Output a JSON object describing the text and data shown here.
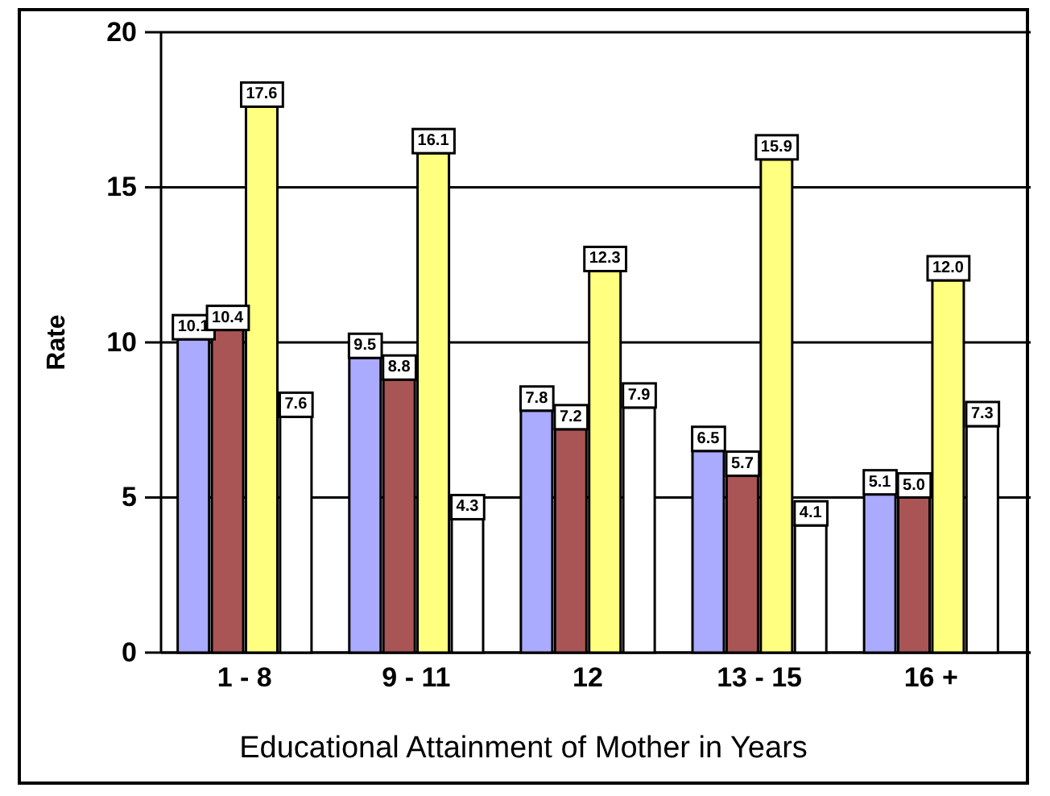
{
  "chart_data": {
    "type": "bar",
    "xlabel": "Educational Attainment of Mother in Years",
    "ylabel": "Rate",
    "categories": [
      "1 - 8",
      "9 - 11",
      "12",
      "13 - 15",
      "16 +"
    ],
    "series": [
      {
        "color": "#aaaaff",
        "values": [
          10.1,
          9.5,
          7.8,
          6.5,
          5.1
        ],
        "value_labels": [
          "10.1",
          "9.5",
          "7.8",
          "6.5",
          "5.1"
        ]
      },
      {
        "color": "#aa5555",
        "values": [
          10.4,
          8.8,
          7.2,
          5.7,
          5.0
        ],
        "value_labels": [
          "10.4",
          "8.8",
          "7.2",
          "5.7",
          "5.0"
        ]
      },
      {
        "color": "#ffff80",
        "values": [
          17.6,
          16.1,
          12.3,
          15.9,
          12.0
        ],
        "value_labels": [
          "17.6",
          "16.1",
          "12.3",
          "15.9",
          "12.0"
        ]
      },
      {
        "color": "#ffffff",
        "values": [
          7.6,
          4.3,
          7.9,
          4.1,
          7.3
        ],
        "value_labels": [
          "7.6",
          "4.3",
          "7.9",
          "4.1",
          "7.3"
        ]
      }
    ],
    "ylim": [
      0,
      20
    ],
    "yticks": [
      0,
      5,
      10,
      15,
      20
    ],
    "grid": "y"
  }
}
